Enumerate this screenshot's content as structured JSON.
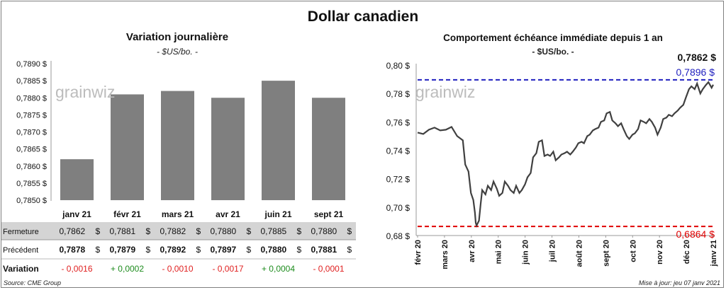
{
  "title": "Dollar canadien",
  "source": "Source: CME Group",
  "updated": "Mise à jour: jeu 07 janv 2021",
  "left_chart": {
    "subtitle": "Variation  journalière",
    "unit": "- $US/bo. -",
    "watermark": "grainwiz"
  },
  "right_chart": {
    "subtitle": "Comportement échéance immédiate depuis 1 an",
    "unit": "- $US/bo. -",
    "watermark": "grainwiz",
    "last_value_label": "0,7862 $",
    "high_label": "0,7896 $",
    "low_label": "0,6864 $"
  },
  "table": {
    "rows": [
      {
        "label": "Fermeture",
        "cells": [
          "0,7862",
          "0,7881",
          "0,7882",
          "0,7880",
          "0,7885",
          "0,7880"
        ],
        "unit": "$"
      },
      {
        "label": "Précédent",
        "cells": [
          "0,7878",
          "0,7879",
          "0,7892",
          "0,7897",
          "0,7880",
          "0,7881"
        ],
        "unit": "$"
      },
      {
        "label": "Variation",
        "cells": [
          "- 0,0016",
          "+ 0,0002",
          "- 0,0010",
          "- 0,0017",
          "+ 0,0004",
          "- 0,0001"
        ]
      }
    ]
  },
  "colors": {
    "bar": "#7f7f7f",
    "line": "#404040",
    "high": "#1f1fbf",
    "low": "#e00000",
    "positive": "#1e8c1e",
    "negative": "#e02020",
    "table_header_bg": "#d4d4d4"
  },
  "chart_data": [
    {
      "type": "bar",
      "categories": [
        "janv 21",
        "févr 21",
        "mars 21",
        "avr 21",
        "juin 21",
        "sept 21"
      ],
      "values": [
        0.7862,
        0.7881,
        0.7882,
        0.788,
        0.7885,
        0.788
      ],
      "ylim": [
        0.785,
        0.789
      ],
      "yticks": [
        "0,7850 $",
        "0,7855 $",
        "0,7860 $",
        "0,7865 $",
        "0,7870 $",
        "0,7875 $",
        "0,7880 $",
        "0,7885 $",
        "0,7890 $"
      ],
      "grid": false
    },
    {
      "type": "line",
      "x_start": "2020-01-07",
      "x_end": "2021-01-07",
      "xticks": [
        "févr 20",
        "mars 20",
        "avr 20",
        "mai 20",
        "juin 20",
        "juil 20",
        "août 20",
        "sept 20",
        "oct 20",
        "nov 20",
        "déc 20",
        "janv 21"
      ],
      "yticks": [
        "0,68 $",
        "0,70 $",
        "0,72 $",
        "0,74 $",
        "0,76 $",
        "0,78 $",
        "0,80 $"
      ],
      "ylim": [
        0.68,
        0.8
      ],
      "reference_lines": [
        {
          "value": 0.7896,
          "style": "dashed",
          "color": "#1f1fbf"
        },
        {
          "value": 0.6864,
          "style": "dashed",
          "color": "#e00000"
        }
      ],
      "series": [
        {
          "x": [
            "2020-01-07",
            "2020-01-14",
            "2020-01-21",
            "2020-01-28",
            "2020-02-04",
            "2020-02-11",
            "2020-02-18",
            "2020-02-25",
            "2020-03-03",
            "2020-03-06",
            "2020-03-10",
            "2020-03-13",
            "2020-03-16",
            "2020-03-18",
            "2020-03-19",
            "2020-03-20",
            "2020-03-23",
            "2020-03-25",
            "2020-03-27",
            "2020-03-31",
            "2020-04-03",
            "2020-04-07",
            "2020-04-10",
            "2020-04-14",
            "2020-04-17",
            "2020-04-21",
            "2020-04-24",
            "2020-04-28",
            "2020-05-01",
            "2020-05-05",
            "2020-05-08",
            "2020-05-12",
            "2020-05-15",
            "2020-05-19",
            "2020-05-22",
            "2020-05-26",
            "2020-05-29",
            "2020-06-02",
            "2020-06-05",
            "2020-06-09",
            "2020-06-12",
            "2020-06-16",
            "2020-06-19",
            "2020-06-23",
            "2020-06-26",
            "2020-06-30",
            "2020-07-03",
            "2020-07-07",
            "2020-07-10",
            "2020-07-14",
            "2020-07-17",
            "2020-07-21",
            "2020-07-24",
            "2020-07-28",
            "2020-07-31",
            "2020-08-04",
            "2020-08-07",
            "2020-08-11",
            "2020-08-14",
            "2020-08-18",
            "2020-08-21",
            "2020-08-25",
            "2020-08-28",
            "2020-09-01",
            "2020-09-04",
            "2020-09-08",
            "2020-09-11",
            "2020-09-15",
            "2020-09-18",
            "2020-09-22",
            "2020-09-25",
            "2020-09-29",
            "2020-10-02",
            "2020-10-06",
            "2020-10-09",
            "2020-10-13",
            "2020-10-16",
            "2020-10-20",
            "2020-10-23",
            "2020-10-27",
            "2020-10-30",
            "2020-11-03",
            "2020-11-06",
            "2020-11-10",
            "2020-11-13",
            "2020-11-17",
            "2020-11-20",
            "2020-11-24",
            "2020-11-27",
            "2020-12-01",
            "2020-12-04",
            "2020-12-08",
            "2020-12-11",
            "2020-12-15",
            "2020-12-18",
            "2020-12-22",
            "2020-12-25",
            "2020-12-29",
            "2021-01-01",
            "2021-01-05",
            "2021-01-07"
          ],
          "y": [
            0.7525,
            0.7515,
            0.7545,
            0.756,
            0.754,
            0.7545,
            0.7565,
            0.75,
            0.747,
            0.73,
            0.725,
            0.71,
            0.705,
            0.696,
            0.689,
            0.687,
            0.6905,
            0.702,
            0.712,
            0.709,
            0.715,
            0.712,
            0.718,
            0.713,
            0.708,
            0.71,
            0.718,
            0.715,
            0.712,
            0.71,
            0.715,
            0.71,
            0.712,
            0.716,
            0.721,
            0.724,
            0.735,
            0.738,
            0.746,
            0.747,
            0.736,
            0.737,
            0.736,
            0.739,
            0.733,
            0.735,
            0.737,
            0.738,
            0.739,
            0.737,
            0.739,
            0.742,
            0.745,
            0.746,
            0.745,
            0.75,
            0.751,
            0.754,
            0.755,
            0.756,
            0.76,
            0.761,
            0.766,
            0.767,
            0.761,
            0.759,
            0.757,
            0.759,
            0.755,
            0.75,
            0.748,
            0.751,
            0.752,
            0.755,
            0.761,
            0.76,
            0.759,
            0.762,
            0.76,
            0.756,
            0.751,
            0.756,
            0.762,
            0.763,
            0.765,
            0.764,
            0.766,
            0.768,
            0.77,
            0.772,
            0.777,
            0.783,
            0.785,
            0.783,
            0.787,
            0.78,
            0.783,
            0.786,
            0.788,
            0.784,
            0.7862
          ]
        }
      ]
    }
  ]
}
